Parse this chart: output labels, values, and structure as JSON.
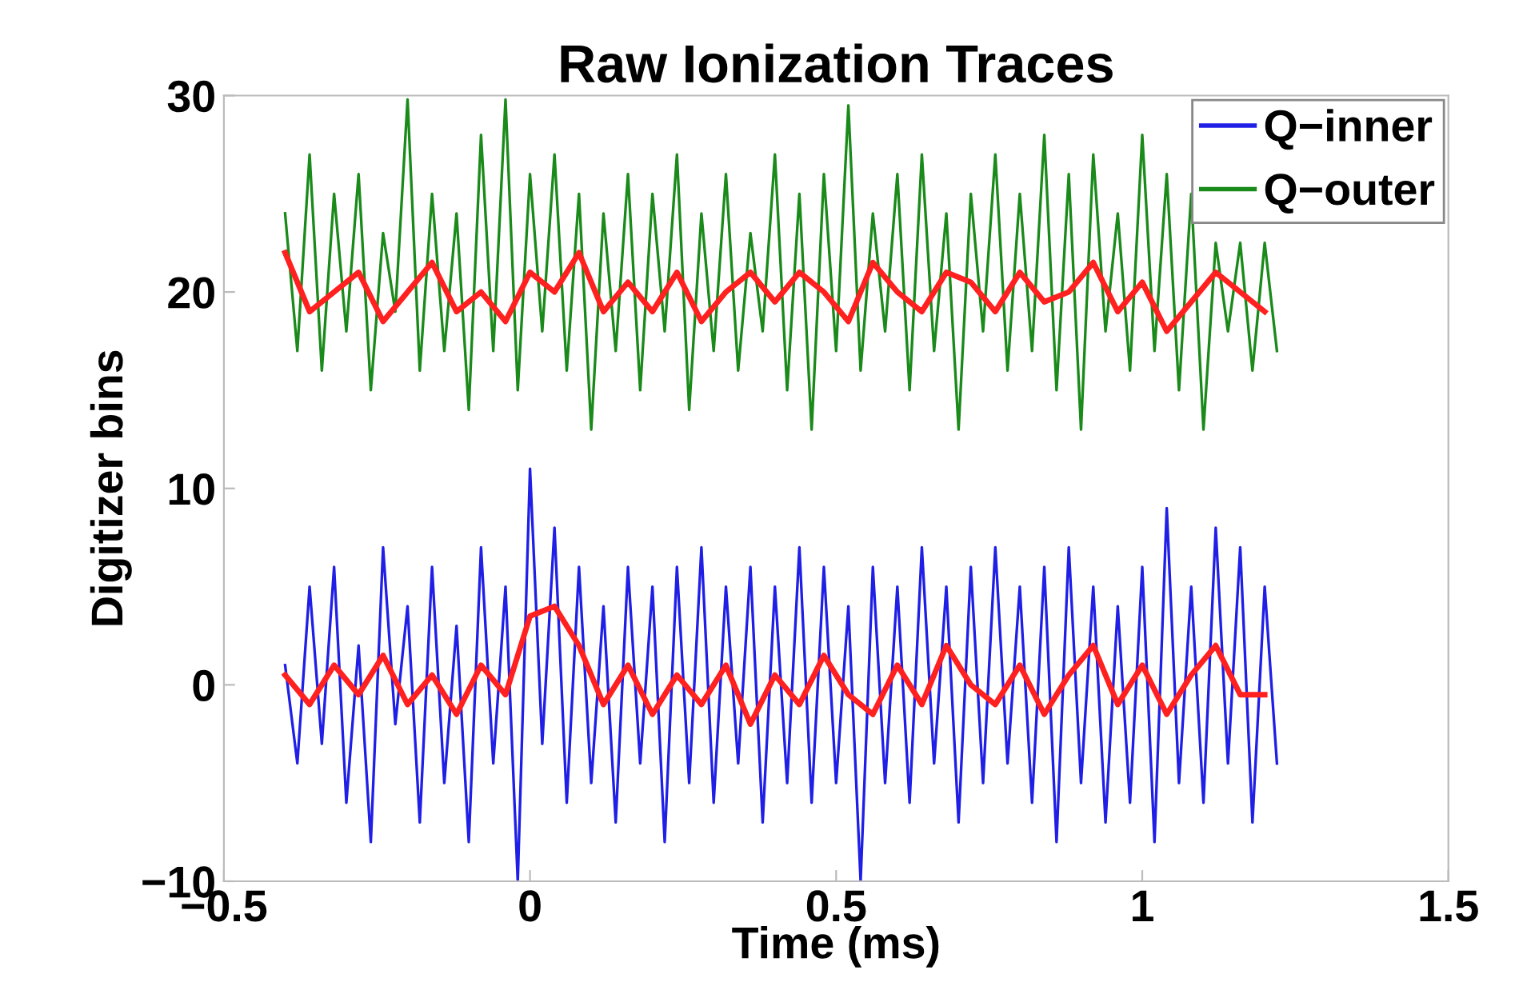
{
  "chart_data": {
    "type": "line",
    "title": "Raw Ionization Traces",
    "xlabel": "Time (ms)",
    "ylabel": "Digitizer bins",
    "xlim": [
      -0.5,
      1.5
    ],
    "ylim": [
      -10,
      30
    ],
    "xticks": [
      {
        "value": -0.5,
        "label": "−0.5"
      },
      0,
      0.5,
      1,
      1.5
    ],
    "yticks": [
      {
        "value": -10,
        "label": "−10"
      },
      0,
      10,
      20,
      30
    ],
    "grid": false,
    "legend": "top right",
    "line_style": "solid",
    "marker": "none",
    "series": [
      {
        "name": "Q−inner",
        "color": "#1f1fe6",
        "x": [
          -0.4,
          -0.38,
          -0.36,
          -0.34,
          -0.32,
          -0.3,
          -0.28,
          -0.26,
          -0.24,
          -0.22,
          -0.2,
          -0.18,
          -0.16,
          -0.14,
          -0.12,
          -0.1,
          -0.08,
          -0.06,
          -0.04,
          -0.02,
          0.0,
          0.02,
          0.04,
          0.06,
          0.08,
          0.1,
          0.12,
          0.14,
          0.16,
          0.18,
          0.2,
          0.22,
          0.24,
          0.26,
          0.28,
          0.3,
          0.32,
          0.34,
          0.36,
          0.38,
          0.4,
          0.42,
          0.44,
          0.46,
          0.48,
          0.5,
          0.52,
          0.54,
          0.56,
          0.58,
          0.6,
          0.62,
          0.64,
          0.66,
          0.68,
          0.7,
          0.72,
          0.74,
          0.76,
          0.78,
          0.8,
          0.82,
          0.84,
          0.86,
          0.88,
          0.9,
          0.92,
          0.94,
          0.96,
          0.98,
          1.0,
          1.02,
          1.04,
          1.06,
          1.08,
          1.1,
          1.12,
          1.14,
          1.16,
          1.18,
          1.2,
          1.22
        ],
        "values": [
          1,
          -4,
          5,
          -3,
          6,
          -6,
          2,
          -8,
          7,
          -2,
          4,
          -7,
          6,
          -5,
          3,
          -8,
          7,
          -4,
          5,
          -10,
          11,
          -3,
          8,
          -6,
          6,
          -5,
          4,
          -7,
          6,
          -4,
          5,
          -8,
          6,
          -5,
          7,
          -6,
          5,
          -4,
          6,
          -7,
          5,
          -5,
          7,
          -6,
          6,
          -5,
          4,
          -10,
          6,
          -5,
          5,
          -6,
          7,
          -4,
          5,
          -7,
          6,
          -5,
          7,
          -4,
          5,
          -6,
          6,
          -8,
          7,
          -5,
          5,
          -7,
          4,
          -6,
          6,
          -8,
          9,
          -5,
          5,
          -6,
          8,
          -4,
          7,
          -7,
          5,
          -4
        ]
      },
      {
        "name": "Q−outer",
        "color": "#1a8a1a",
        "x": [
          -0.4,
          -0.38,
          -0.36,
          -0.34,
          -0.32,
          -0.3,
          -0.28,
          -0.26,
          -0.24,
          -0.22,
          -0.2,
          -0.18,
          -0.16,
          -0.14,
          -0.12,
          -0.1,
          -0.08,
          -0.06,
          -0.04,
          -0.02,
          0.0,
          0.02,
          0.04,
          0.06,
          0.08,
          0.1,
          0.12,
          0.14,
          0.16,
          0.18,
          0.2,
          0.22,
          0.24,
          0.26,
          0.28,
          0.3,
          0.32,
          0.34,
          0.36,
          0.38,
          0.4,
          0.42,
          0.44,
          0.46,
          0.48,
          0.5,
          0.52,
          0.54,
          0.56,
          0.58,
          0.6,
          0.62,
          0.64,
          0.66,
          0.68,
          0.7,
          0.72,
          0.74,
          0.76,
          0.78,
          0.8,
          0.82,
          0.84,
          0.86,
          0.88,
          0.9,
          0.92,
          0.94,
          0.96,
          0.98,
          1.0,
          1.02,
          1.04,
          1.06,
          1.08,
          1.1,
          1.12,
          1.14,
          1.16,
          1.18,
          1.2,
          1.22
        ],
        "values": [
          24,
          17,
          27,
          16,
          25,
          18,
          26,
          15,
          23,
          19,
          29.8,
          16,
          25,
          17,
          24,
          14,
          28,
          17,
          29.8,
          15,
          26,
          18,
          27,
          16,
          25,
          13,
          24,
          17,
          26,
          15,
          25,
          18,
          27,
          14,
          24,
          17,
          26,
          16,
          23,
          18,
          27,
          15,
          25,
          13,
          26,
          17,
          29.5,
          16,
          24,
          18,
          26,
          15,
          27,
          17,
          24,
          13,
          25,
          18,
          27,
          16,
          25,
          17,
          28,
          15,
          26,
          13,
          27,
          18,
          24,
          16,
          28,
          17,
          26,
          15,
          25,
          13,
          22.5,
          18,
          22.5,
          16,
          22.5,
          17
        ]
      },
      {
        "color": "#ff2020",
        "x": [
          -0.4,
          -0.36,
          -0.32,
          -0.28,
          -0.24,
          -0.2,
          -0.16,
          -0.12,
          -0.08,
          -0.04,
          0.0,
          0.04,
          0.08,
          0.12,
          0.16,
          0.2,
          0.24,
          0.28,
          0.32,
          0.36,
          0.4,
          0.44,
          0.48,
          0.52,
          0.56,
          0.6,
          0.64,
          0.68,
          0.72,
          0.76,
          0.8,
          0.84,
          0.88,
          0.92,
          0.96,
          1.0,
          1.04,
          1.08,
          1.12,
          1.16,
          1.2
        ],
        "values": [
          0.5,
          -1,
          1,
          -0.5,
          1.5,
          -1,
          0.5,
          -1.5,
          1,
          -0.5,
          3.5,
          4,
          2,
          -1,
          1,
          -1.5,
          0.5,
          -1,
          1,
          -2,
          0.5,
          -1,
          1.5,
          -0.5,
          -1.5,
          1,
          -1,
          2,
          0,
          -1,
          1,
          -1.5,
          0.5,
          2,
          -1,
          1,
          -1.5,
          0.5,
          2,
          -0.5,
          -0.5
        ]
      },
      {
        "color": "#ff2020",
        "x": [
          -0.4,
          -0.36,
          -0.32,
          -0.28,
          -0.24,
          -0.2,
          -0.16,
          -0.12,
          -0.08,
          -0.04,
          0.0,
          0.04,
          0.08,
          0.12,
          0.16,
          0.2,
          0.24,
          0.28,
          0.32,
          0.36,
          0.4,
          0.44,
          0.48,
          0.52,
          0.56,
          0.6,
          0.64,
          0.68,
          0.72,
          0.76,
          0.8,
          0.84,
          0.88,
          0.92,
          0.96,
          1.0,
          1.04,
          1.08,
          1.12,
          1.16,
          1.2
        ],
        "values": [
          22,
          19,
          20,
          21,
          18.5,
          20,
          21.5,
          19,
          20,
          18.5,
          21,
          20,
          22,
          19,
          20.5,
          19,
          21,
          18.5,
          20,
          21,
          19.5,
          21,
          20,
          18.5,
          21.5,
          20,
          19,
          21,
          20.5,
          19,
          21,
          19.5,
          20,
          21.5,
          19,
          20.5,
          18,
          19.5,
          21,
          20,
          19
        ]
      }
    ]
  }
}
